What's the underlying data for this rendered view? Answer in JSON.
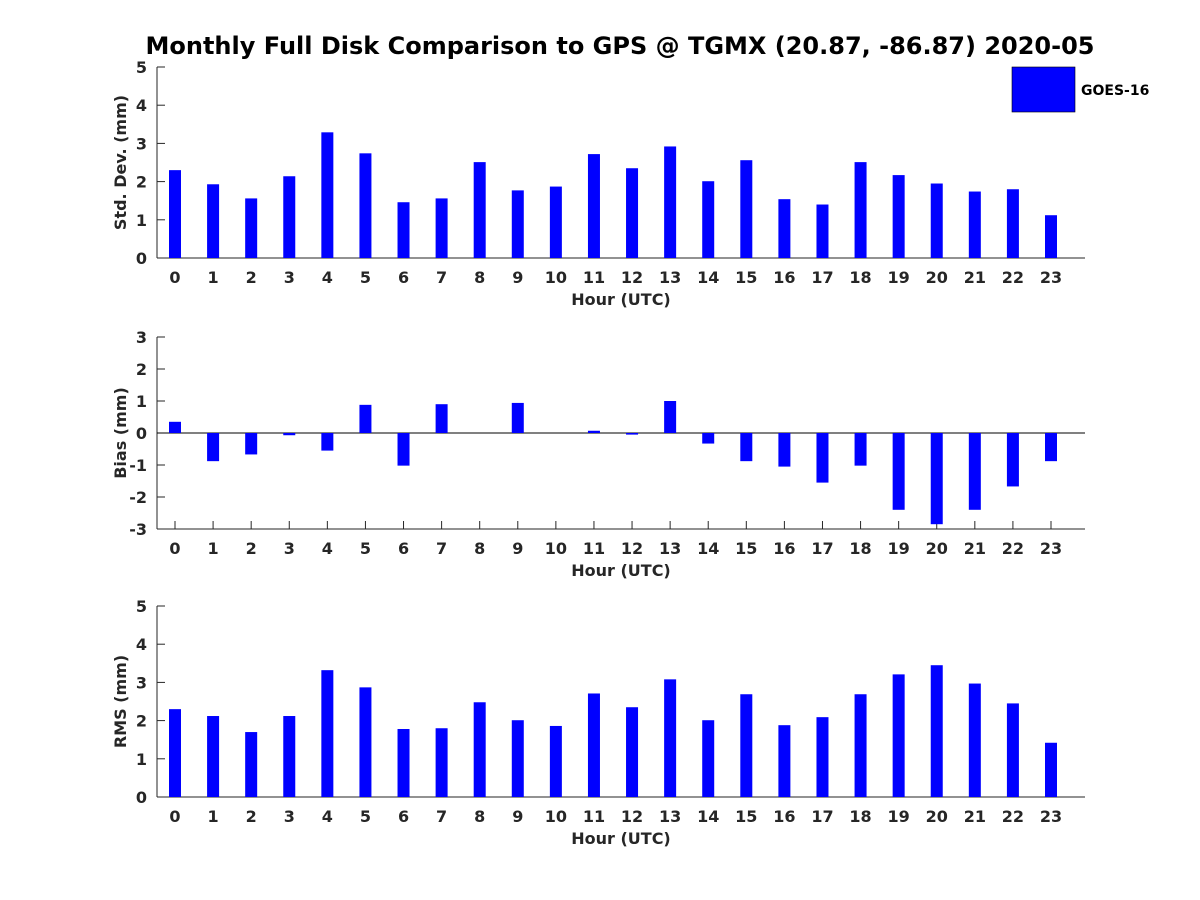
{
  "title": "Monthly Full Disk Comparison to GPS @ TGMX (20.87, -86.87) 2020-05",
  "legend": {
    "label": "GOES-16",
    "placement": "top-right"
  },
  "bar_color": "#0000ff",
  "chart_data": [
    {
      "type": "bar",
      "xlabel": "Hour (UTC)",
      "ylabel": "Std. Dev. (mm)",
      "ylim": [
        0,
        5
      ],
      "yticks": [
        0,
        1,
        2,
        3,
        4,
        5
      ],
      "categories": [
        "0",
        "1",
        "2",
        "3",
        "4",
        "5",
        "6",
        "7",
        "8",
        "9",
        "10",
        "11",
        "12",
        "13",
        "14",
        "15",
        "16",
        "17",
        "18",
        "19",
        "20",
        "21",
        "22",
        "23"
      ],
      "series": [
        {
          "name": "GOES-16",
          "values": [
            2.3,
            1.93,
            1.56,
            2.14,
            3.29,
            2.74,
            1.46,
            1.56,
            2.51,
            1.77,
            1.87,
            2.72,
            2.35,
            2.92,
            2.01,
            2.56,
            1.54,
            1.4,
            2.51,
            2.17,
            1.95,
            1.74,
            1.8,
            1.12
          ]
        }
      ]
    },
    {
      "type": "bar",
      "xlabel": "Hour (UTC)",
      "ylabel": "Bias (mm)",
      "ylim": [
        -3,
        3
      ],
      "yticks": [
        -3,
        -2,
        -1,
        0,
        1,
        2,
        3
      ],
      "categories": [
        "0",
        "1",
        "2",
        "3",
        "4",
        "5",
        "6",
        "7",
        "8",
        "9",
        "10",
        "11",
        "12",
        "13",
        "14",
        "15",
        "16",
        "17",
        "18",
        "19",
        "20",
        "21",
        "22",
        "23"
      ],
      "series": [
        {
          "name": "GOES-16",
          "values": [
            0.35,
            -0.88,
            -0.67,
            -0.07,
            -0.55,
            0.88,
            -1.02,
            0.9,
            0.0,
            0.94,
            0.0,
            0.07,
            -0.05,
            1.0,
            -0.33,
            -0.88,
            -1.05,
            -1.55,
            -1.02,
            -2.4,
            -2.85,
            -2.4,
            -1.67,
            -0.88
          ]
        }
      ]
    },
    {
      "type": "bar",
      "xlabel": "Hour (UTC)",
      "ylabel": "RMS (mm)",
      "ylim": [
        0,
        5
      ],
      "yticks": [
        0,
        1,
        2,
        3,
        4,
        5
      ],
      "categories": [
        "0",
        "1",
        "2",
        "3",
        "4",
        "5",
        "6",
        "7",
        "8",
        "9",
        "10",
        "11",
        "12",
        "13",
        "14",
        "15",
        "16",
        "17",
        "18",
        "19",
        "20",
        "21",
        "22",
        "23"
      ],
      "series": [
        {
          "name": "GOES-16",
          "values": [
            2.3,
            2.12,
            1.7,
            2.12,
            3.32,
            2.87,
            1.78,
            1.8,
            2.48,
            2.01,
            1.86,
            2.71,
            2.35,
            3.08,
            2.01,
            2.69,
            1.88,
            2.09,
            2.69,
            3.21,
            3.45,
            2.97,
            2.45,
            1.42
          ]
        }
      ]
    }
  ]
}
